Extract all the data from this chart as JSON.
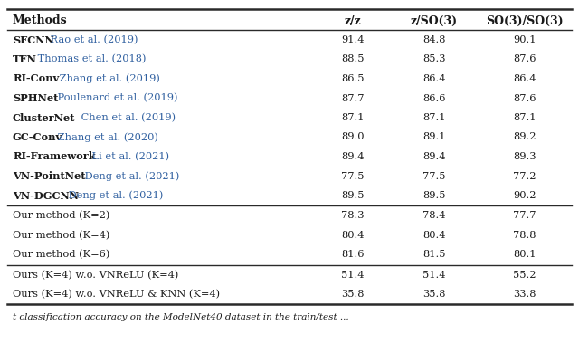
{
  "col_headers": [
    "Methods",
    "z/z",
    "z/SO(3)",
    "SO(3)/SO(3)"
  ],
  "rows_group1": [
    [
      "SFCNN",
      " Rao et al. (2019)",
      "91.4",
      "84.8",
      "90.1"
    ],
    [
      "TFN",
      " Thomas et al. (2018)",
      "88.5",
      "85.3",
      "87.6"
    ],
    [
      "RI-Conv",
      " Zhang et al. (2019)",
      "86.5",
      "86.4",
      "86.4"
    ],
    [
      "SPHNet",
      " Poulenard et al. (2019)",
      "87.7",
      "86.6",
      "87.6"
    ],
    [
      "ClusterNet",
      " Chen et al. (2019)",
      "87.1",
      "87.1",
      "87.1"
    ],
    [
      "GC-Conv",
      " Zhang et al. (2020)",
      "89.0",
      "89.1",
      "89.2"
    ],
    [
      "RI-Framework",
      " Li et al. (2021)",
      "89.4",
      "89.4",
      "89.3"
    ],
    [
      "VN-PointNet",
      " Deng et al. (2021)",
      "77.5",
      "77.5",
      "77.2"
    ],
    [
      "VN-DGCNN",
      " Deng et al. (2021)",
      "89.5",
      "89.5",
      "90.2"
    ]
  ],
  "rows_group2": [
    [
      "Our method (K=2)",
      "78.3",
      "78.4",
      "77.7"
    ],
    [
      "Our method (K=4)",
      "80.4",
      "80.4",
      "78.8"
    ],
    [
      "Our method (K=6)",
      "81.6",
      "81.5",
      "80.1"
    ]
  ],
  "rows_group3": [
    [
      "Ours (K=4) w.o. VNReLU (K=4)",
      "51.4",
      "51.4",
      "55.2"
    ],
    [
      "Ours (K=4) w.o. VNReLU & KNN (K=4)",
      "35.8",
      "35.8",
      "33.8"
    ]
  ],
  "caption": "t classification accuracy on the ModelNet40 dataset in the train/test ...",
  "blue_color": "#3060A0",
  "black_color": "#1a1a1a",
  "bg_color": "#ffffff"
}
